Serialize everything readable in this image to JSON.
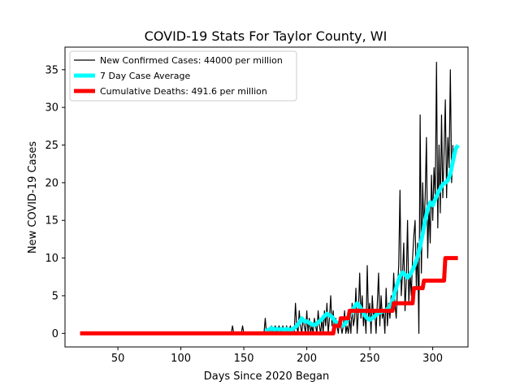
{
  "chart_data": {
    "type": "line",
    "title": "COVID-19 Stats For Taylor County, WI",
    "xlabel": "Days Since 2020 Began",
    "ylabel": "New COVID-19 Cases",
    "xlim": [
      8,
      328
    ],
    "ylim": [
      -1.8,
      38
    ],
    "xticks": [
      50,
      100,
      150,
      200,
      250,
      300
    ],
    "yticks": [
      0,
      5,
      10,
      15,
      20,
      25,
      30,
      35
    ],
    "grid": false,
    "legend_position": "top-left",
    "series": [
      {
        "name": "New Confirmed Cases: 44000 per million",
        "color": "#000000",
        "points": [
          [
            20,
            0
          ],
          [
            140,
            0
          ],
          [
            141,
            1
          ],
          [
            142,
            0
          ],
          [
            148,
            0
          ],
          [
            149,
            1
          ],
          [
            150,
            0
          ],
          [
            166,
            0
          ],
          [
            167,
            2
          ],
          [
            168,
            0
          ],
          [
            171,
            0
          ],
          [
            172,
            1
          ],
          [
            173,
            0
          ],
          [
            175,
            1
          ],
          [
            176,
            0
          ],
          [
            178,
            1
          ],
          [
            179,
            0
          ],
          [
            181,
            1
          ],
          [
            182,
            0
          ],
          [
            184,
            1
          ],
          [
            185,
            0
          ],
          [
            187,
            1
          ],
          [
            188,
            0
          ],
          [
            190,
            0
          ],
          [
            191,
            4
          ],
          [
            192,
            1
          ],
          [
            193,
            0
          ],
          [
            194,
            3
          ],
          [
            195,
            1
          ],
          [
            196,
            0
          ],
          [
            197,
            2
          ],
          [
            198,
            1
          ],
          [
            199,
            0
          ],
          [
            200,
            3
          ],
          [
            201,
            0
          ],
          [
            202,
            2
          ],
          [
            203,
            0
          ],
          [
            204,
            1
          ],
          [
            205,
            0
          ],
          [
            206,
            2
          ],
          [
            207,
            1
          ],
          [
            208,
            0
          ],
          [
            209,
            3
          ],
          [
            210,
            1
          ],
          [
            211,
            0
          ],
          [
            212,
            2
          ],
          [
            213,
            0
          ],
          [
            214,
            3
          ],
          [
            215,
            1
          ],
          [
            216,
            4
          ],
          [
            217,
            0
          ],
          [
            218,
            2
          ],
          [
            219,
            5
          ],
          [
            220,
            1
          ],
          [
            221,
            3
          ],
          [
            222,
            0
          ],
          [
            223,
            2
          ],
          [
            224,
            1
          ],
          [
            225,
            0
          ],
          [
            226,
            2
          ],
          [
            227,
            1
          ],
          [
            228,
            0
          ],
          [
            229,
            1
          ],
          [
            230,
            3
          ],
          [
            231,
            0
          ],
          [
            232,
            1
          ],
          [
            233,
            0
          ],
          [
            234,
            2
          ],
          [
            235,
            0
          ],
          [
            236,
            4
          ],
          [
            237,
            1
          ],
          [
            238,
            2
          ],
          [
            239,
            6
          ],
          [
            240,
            0
          ],
          [
            241,
            3
          ],
          [
            242,
            8
          ],
          [
            243,
            2
          ],
          [
            244,
            5
          ],
          [
            245,
            1
          ],
          [
            246,
            3
          ],
          [
            247,
            0
          ],
          [
            248,
            9
          ],
          [
            249,
            2
          ],
          [
            250,
            4
          ],
          [
            251,
            0
          ],
          [
            252,
            5
          ],
          [
            253,
            2
          ],
          [
            254,
            3
          ],
          [
            255,
            0
          ],
          [
            256,
            4
          ],
          [
            257,
            8
          ],
          [
            258,
            1
          ],
          [
            259,
            5
          ],
          [
            260,
            2
          ],
          [
            261,
            3
          ],
          [
            262,
            0
          ],
          [
            263,
            6
          ],
          [
            264,
            1
          ],
          [
            265,
            4
          ],
          [
            266,
            2
          ],
          [
            267,
            5
          ],
          [
            268,
            3
          ],
          [
            269,
            8
          ],
          [
            270,
            4
          ],
          [
            271,
            2
          ],
          [
            272,
            6
          ],
          [
            273,
            9
          ],
          [
            274,
            19
          ],
          [
            275,
            5
          ],
          [
            276,
            8
          ],
          [
            277,
            12
          ],
          [
            278,
            3
          ],
          [
            279,
            7
          ],
          [
            280,
            15
          ],
          [
            281,
            4
          ],
          [
            282,
            8
          ],
          [
            283,
            5
          ],
          [
            284,
            10
          ],
          [
            285,
            13
          ],
          [
            286,
            15
          ],
          [
            287,
            6
          ],
          [
            288,
            12
          ],
          [
            289,
            0
          ],
          [
            290,
            29
          ],
          [
            291,
            8
          ],
          [
            292,
            20
          ],
          [
            293,
            14
          ],
          [
            294,
            18
          ],
          [
            295,
            26
          ],
          [
            296,
            10
          ],
          [
            297,
            17
          ],
          [
            298,
            12
          ],
          [
            299,
            21
          ],
          [
            300,
            15
          ],
          [
            301,
            22
          ],
          [
            302,
            18
          ],
          [
            303,
            36
          ],
          [
            304,
            14
          ],
          [
            305,
            25
          ],
          [
            306,
            16
          ],
          [
            307,
            29
          ],
          [
            308,
            18
          ],
          [
            309,
            24
          ],
          [
            310,
            31
          ],
          [
            311,
            18
          ],
          [
            312,
            26
          ],
          [
            313,
            22
          ],
          [
            314,
            35
          ],
          [
            315,
            20
          ],
          [
            316,
            25
          ]
        ]
      },
      {
        "name": "7 Day Case Average",
        "color": "#00ffff",
        "points": [
          [
            167,
            0.3
          ],
          [
            170,
            0.5
          ],
          [
            172,
            0.7
          ],
          [
            174,
            0.5
          ],
          [
            176,
            0.6
          ],
          [
            178,
            0.5
          ],
          [
            180,
            0.6
          ],
          [
            182,
            0.4
          ],
          [
            184,
            0.6
          ],
          [
            186,
            0.5
          ],
          [
            188,
            0.5
          ],
          [
            190,
            0.7
          ],
          [
            192,
            1.0
          ],
          [
            194,
            1.4
          ],
          [
            196,
            2.0
          ],
          [
            198,
            1.6
          ],
          [
            200,
            1.6
          ],
          [
            202,
            1.4
          ],
          [
            204,
            1.2
          ],
          [
            206,
            1.1
          ],
          [
            208,
            1.3
          ],
          [
            210,
            1.6
          ],
          [
            212,
            1.9
          ],
          [
            214,
            2.3
          ],
          [
            216,
            2.6
          ],
          [
            218,
            2.4
          ],
          [
            220,
            2.2
          ],
          [
            222,
            1.7
          ],
          [
            224,
            1.4
          ],
          [
            226,
            1.1
          ],
          [
            228,
            1.0
          ],
          [
            230,
            1.2
          ],
          [
            232,
            1.7
          ],
          [
            234,
            2.3
          ],
          [
            236,
            3.0
          ],
          [
            238,
            3.6
          ],
          [
            240,
            4.0
          ],
          [
            242,
            3.6
          ],
          [
            244,
            3.0
          ],
          [
            246,
            2.4
          ],
          [
            248,
            2.0
          ],
          [
            250,
            1.8
          ],
          [
            252,
            2.0
          ],
          [
            254,
            2.3
          ],
          [
            256,
            2.6
          ],
          [
            258,
            2.8
          ],
          [
            260,
            2.9
          ],
          [
            262,
            3.0
          ],
          [
            264,
            3.2
          ],
          [
            266,
            3.6
          ],
          [
            268,
            4.3
          ],
          [
            270,
            5.5
          ],
          [
            272,
            6.6
          ],
          [
            274,
            7.6
          ],
          [
            276,
            8.1
          ],
          [
            278,
            7.8
          ],
          [
            280,
            7.4
          ],
          [
            282,
            7.8
          ],
          [
            284,
            8.4
          ],
          [
            286,
            9.2
          ],
          [
            288,
            10.2
          ],
          [
            290,
            11.6
          ],
          [
            292,
            13.2
          ],
          [
            294,
            15.0
          ],
          [
            296,
            16.5
          ],
          [
            298,
            17.4
          ],
          [
            300,
            17.0
          ],
          [
            302,
            17.8
          ],
          [
            304,
            18.6
          ],
          [
            306,
            19.2
          ],
          [
            308,
            19.8
          ],
          [
            310,
            20.0
          ],
          [
            312,
            20.3
          ],
          [
            314,
            21.2
          ],
          [
            316,
            22.8
          ],
          [
            318,
            24.4
          ],
          [
            320,
            25.0
          ]
        ]
      },
      {
        "name": "Cumulative Deaths: 491.6 per million",
        "color": "#ff0000",
        "points": [
          [
            20,
            0
          ],
          [
            221,
            0
          ],
          [
            222,
            1
          ],
          [
            226,
            1
          ],
          [
            227,
            2
          ],
          [
            233,
            2
          ],
          [
            234,
            3
          ],
          [
            268,
            3
          ],
          [
            269,
            4
          ],
          [
            284,
            4
          ],
          [
            285,
            6
          ],
          [
            292,
            6
          ],
          [
            293,
            7
          ],
          [
            309,
            7
          ],
          [
            310,
            10
          ],
          [
            320,
            10
          ]
        ]
      }
    ]
  }
}
